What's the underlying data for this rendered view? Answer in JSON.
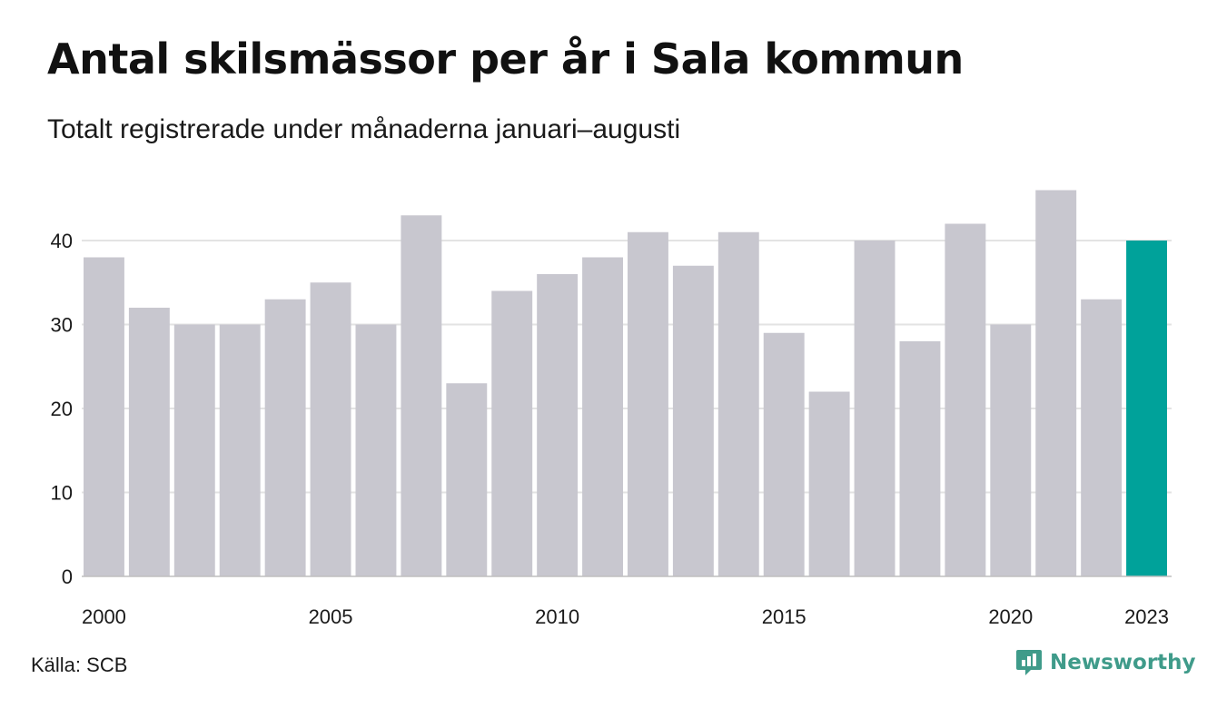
{
  "title": "Antal skilsmässor per år i Sala kommun",
  "subtitle": "Totalt registrerade under månaderna januari–augusti",
  "source": "Källa: SCB",
  "brand": {
    "name": "Newsworthy",
    "icon": "newsworthy-logo-icon",
    "color": "#3f9b8a"
  },
  "colors": {
    "bar": "#c8c7cf",
    "highlight": "#00a29a",
    "grid": "#e3e3e3",
    "baseline": "#bfbfbf"
  },
  "chart_data": {
    "type": "bar",
    "categories": [
      "2000",
      "2001",
      "2002",
      "2003",
      "2004",
      "2005",
      "2006",
      "2007",
      "2008",
      "2009",
      "2010",
      "2011",
      "2012",
      "2013",
      "2014",
      "2015",
      "2016",
      "2017",
      "2018",
      "2019",
      "2020",
      "2021",
      "2022",
      "2023"
    ],
    "values": [
      38,
      32,
      30,
      30,
      33,
      35,
      30,
      43,
      23,
      34,
      36,
      38,
      41,
      37,
      41,
      29,
      22,
      40,
      28,
      42,
      30,
      46,
      33,
      40
    ],
    "highlight_category": "2023",
    "x_tick_labels": [
      "2000",
      "2005",
      "2010",
      "2015",
      "2020",
      "2023"
    ],
    "y_ticks": [
      0,
      10,
      20,
      30,
      40
    ],
    "ylim": [
      0,
      46
    ],
    "grid": true,
    "legend": "none",
    "xlabel": "",
    "ylabel": ""
  }
}
